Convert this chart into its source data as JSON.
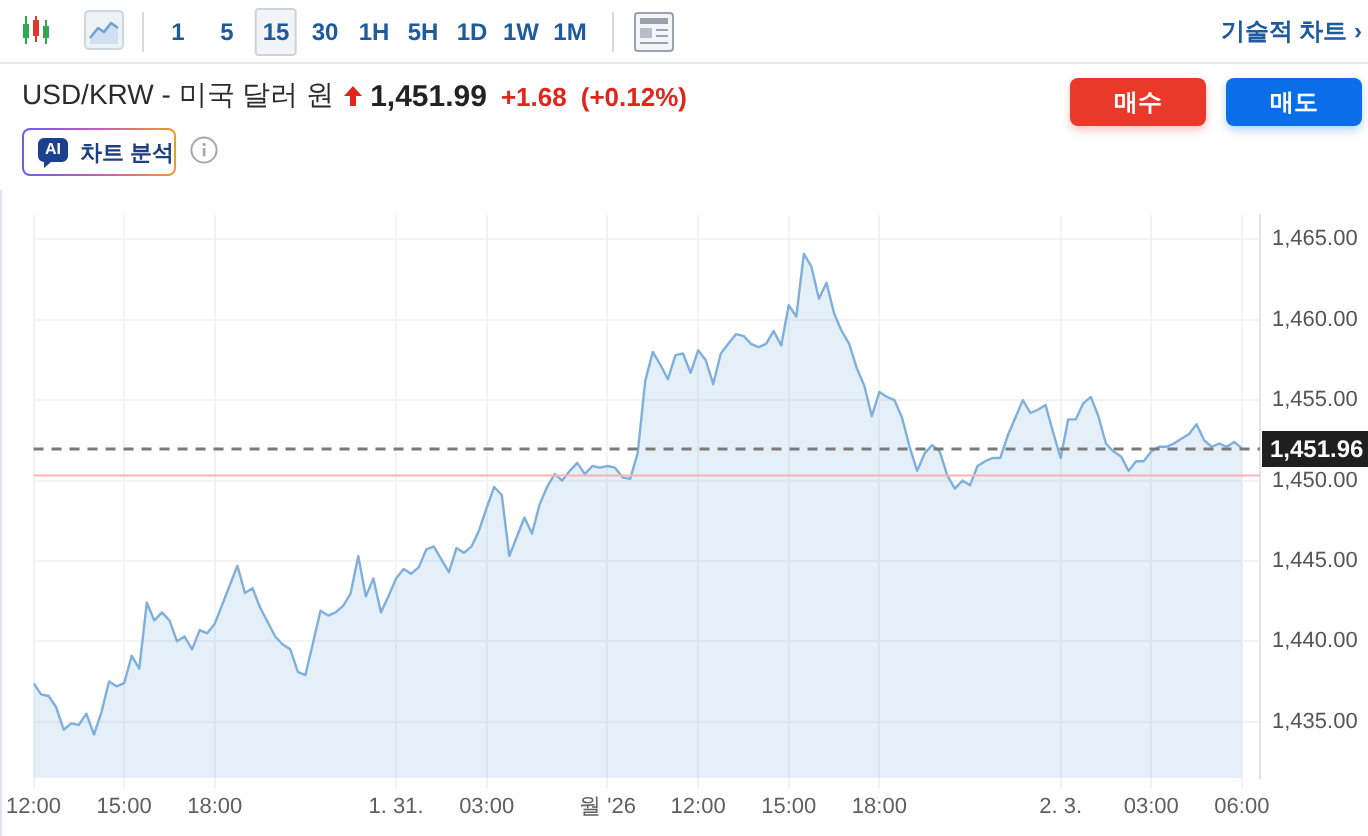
{
  "chart_data": {
    "type": "area",
    "title": "USD/KRW - 미국 달러 원",
    "annotations": [
      "1,451.99",
      "+1.68",
      "(+0.12%)",
      "매수",
      "매도",
      "AI",
      "차트 분석",
      "1",
      "5",
      "15",
      "30",
      "1H",
      "5H",
      "1D",
      "1W",
      "1M",
      "기술적 차트 ›"
    ],
    "categories": [
      "12:00",
      null,
      null,
      null,
      null,
      null,
      null,
      null,
      null,
      null,
      null,
      null,
      "15:00",
      null,
      null,
      null,
      null,
      null,
      null,
      null,
      null,
      null,
      null,
      null,
      "18:00",
      null,
      null,
      null,
      null,
      null,
      null,
      null,
      null,
      null,
      null,
      null,
      null,
      null,
      null,
      null,
      null,
      null,
      null,
      null,
      null,
      null,
      null,
      null,
      "1. 31.",
      null,
      null,
      null,
      null,
      null,
      null,
      null,
      null,
      null,
      null,
      null,
      "03:00",
      null,
      null,
      null,
      null,
      null,
      null,
      null,
      null,
      null,
      null,
      null,
      null,
      null,
      null,
      null,
      "월 '26",
      null,
      null,
      null,
      null,
      null,
      null,
      null,
      null,
      null,
      null,
      null,
      "12:00",
      null,
      null,
      null,
      null,
      null,
      null,
      null,
      null,
      null,
      null,
      null,
      "15:00",
      null,
      null,
      null,
      null,
      null,
      null,
      null,
      null,
      null,
      null,
      null,
      "18:00",
      null,
      null,
      null,
      null,
      null,
      null,
      null,
      null,
      null,
      null,
      null,
      null,
      null,
      null,
      null,
      null,
      null,
      null,
      null,
      null,
      null,
      null,
      null,
      "2. 3.",
      null,
      null,
      null,
      null,
      null,
      null,
      null,
      null,
      null,
      null,
      null,
      "03:00",
      null,
      null,
      null,
      null,
      null,
      null,
      null,
      null,
      null,
      null,
      null,
      "06:00"
    ],
    "values": [
      1437.4,
      1436.7,
      1436.6,
      1435.9,
      1434.5,
      1434.9,
      1434.8,
      1435.5,
      1434.2,
      1435.6,
      1437.5,
      1437.2,
      1437.4,
      1439.1,
      1438.3,
      1442.4,
      1441.3,
      1441.8,
      1441.3,
      1440.0,
      1440.3,
      1439.5,
      1440.7,
      1440.5,
      1441.1,
      1442.3,
      1443.5,
      1444.7,
      1443.0,
      1443.3,
      1442.1,
      1441.2,
      1440.3,
      1439.8,
      1439.5,
      1438.1,
      1437.9,
      1439.9,
      1441.9,
      1441.6,
      1441.8,
      1442.2,
      1443.0,
      1445.3,
      1442.8,
      1443.9,
      1441.8,
      1442.8,
      1443.9,
      1444.5,
      1444.2,
      1444.6,
      1445.7,
      1445.9,
      1445.1,
      1444.3,
      1445.8,
      1445.5,
      1445.9,
      1446.9,
      1448.3,
      1449.6,
      1449.1,
      1445.3,
      1446.5,
      1447.7,
      1446.7,
      1448.5,
      1449.6,
      1450.4,
      1450.0,
      1450.6,
      1451.1,
      1450.4,
      1450.9,
      1450.8,
      1450.9,
      1450.8,
      1450.2,
      1450.1,
      1451.7,
      1456.2,
      1458.0,
      1457.2,
      1456.3,
      1457.8,
      1457.9,
      1456.7,
      1458.1,
      1457.5,
      1456.0,
      1457.9,
      1458.5,
      1459.1,
      1459.0,
      1458.5,
      1458.3,
      1458.5,
      1459.3,
      1458.4,
      1460.9,
      1460.2,
      1464.1,
      1463.3,
      1461.3,
      1462.3,
      1460.4,
      1459.3,
      1458.5,
      1457.0,
      1455.9,
      1454.0,
      1455.5,
      1455.2,
      1455.0,
      1453.9,
      1452.1,
      1450.6,
      1451.7,
      1452.2,
      1451.8,
      1450.3,
      1449.5,
      1450.0,
      1449.7,
      1450.9,
      1451.2,
      1451.4,
      1451.4,
      1452.8,
      1453.9,
      1455.0,
      1454.2,
      1454.4,
      1454.7,
      1453.0,
      1451.4,
      1453.8,
      1453.8,
      1454.8,
      1455.2,
      1454.0,
      1452.3,
      1451.8,
      1451.5,
      1450.6,
      1451.2,
      1451.2,
      1451.8,
      1452.1,
      1452.1,
      1452.3,
      1452.6,
      1452.9,
      1453.5,
      1452.5,
      1452.1,
      1452.3,
      1452.1,
      1452.4,
      1452.0
    ],
    "color": "#7fb0dd",
    "ylim": [
      1431.5,
      1466.5
    ],
    "yticks": [
      {
        "value": 1435,
        "label": "1,435.00"
      },
      {
        "value": 1440,
        "label": "1,440.00"
      },
      {
        "value": 1445,
        "label": "1,445.00"
      },
      {
        "value": 1450,
        "label": "1,450.00"
      },
      {
        "value": 1455,
        "label": "1,455.00"
      },
      {
        "value": 1460,
        "label": "1,460.00"
      },
      {
        "value": 1465,
        "label": "1,465.00"
      }
    ],
    "grid": true,
    "ref_lines": [
      {
        "axis": "y",
        "value": 1450.31,
        "color": "#f7b3b3"
      },
      {
        "axis": "y",
        "value": 1451.96,
        "label": "1,451.96",
        "color": "#7a7a7a",
        "line_style": "dashed"
      }
    ]
  }
}
